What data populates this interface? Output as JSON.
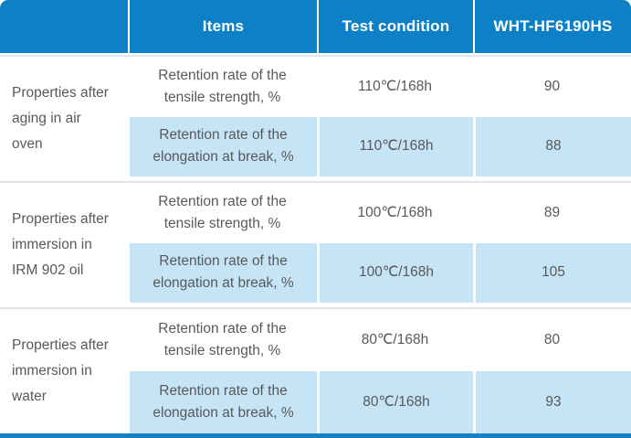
{
  "header": {
    "columns": [
      "",
      "Items",
      "Test condition",
      "WHT-HF6190HS"
    ]
  },
  "groups": [
    {
      "label": "Properties after aging in air oven",
      "rows": [
        {
          "item": "Retention rate of the tensile strength, %",
          "condition": "110℃/168h",
          "value": "90"
        },
        {
          "item": "Retention rate of the elongation at break, %",
          "condition": "110℃/168h",
          "value": "88"
        }
      ]
    },
    {
      "label": "Properties after immersion in IRM 902 oil",
      "rows": [
        {
          "item": "Retention rate of the tensile strength, %",
          "condition": "100℃/168h",
          "value": "89"
        },
        {
          "item": "Retention rate of the elongation at break, %",
          "condition": "100℃/168h",
          "value": "105"
        }
      ]
    },
    {
      "label": "Properties after immersion in water",
      "rows": [
        {
          "item": "Retention rate of the tensile strength, %",
          "condition": "80℃/168h",
          "value": "80"
        },
        {
          "item": "Retention rate of the elongation at break, %",
          "condition": "80℃/168h",
          "value": "93"
        }
      ]
    }
  ],
  "colors": {
    "header_bg": "#0e81c6",
    "highlight_bg": "#c5e4f5",
    "body_text": "#58595b",
    "group_separator": "#e4e4e4",
    "header_underline": "#d9e9f4",
    "bottom_bar": "#1580c2"
  }
}
